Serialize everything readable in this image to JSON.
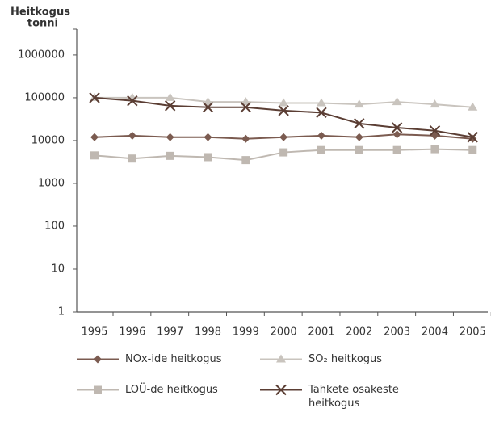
{
  "chart_data": {
    "type": "line",
    "ylabel": [
      "Heitkogus",
      "tonni"
    ],
    "x": [
      1995,
      1996,
      1997,
      1998,
      1999,
      2000,
      2001,
      2002,
      2003,
      2004,
      2005
    ],
    "xlim": [
      1994.53,
      2005.4
    ],
    "xticks": [
      1995,
      1996,
      1997,
      1998,
      1999,
      2000,
      2001,
      2002,
      2003,
      2004,
      2005
    ],
    "ylim": [
      1,
      4000000
    ],
    "yscale": "log",
    "yticks": [
      1,
      10,
      100,
      1000,
      10000,
      100000,
      1000000
    ],
    "series": [
      {
        "name": "NOx-ide heitkogus",
        "color": "#7b5b50",
        "marker": "diamond",
        "values": [
          12000,
          13000,
          12000,
          12000,
          11000,
          12000,
          13000,
          12000,
          14000,
          13000,
          11000
        ]
      },
      {
        "name": "SO₂ heitkogus",
        "color": "#c9c4be",
        "marker": "triangle",
        "values": [
          100000,
          100000,
          100000,
          80000,
          80000,
          75000,
          75000,
          70000,
          80000,
          70000,
          60000
        ]
      },
      {
        "name": "LOÜ-de heitkogus",
        "color": "#bfb8b1",
        "marker": "square",
        "values": [
          4500,
          3800,
          4400,
          4100,
          3500,
          5300,
          6000,
          6000,
          6000,
          6300,
          6000
        ]
      },
      {
        "name": "Tahkete osakeste heitkogus",
        "color": "#5b3e34",
        "marker": "x",
        "values": [
          100000,
          85000,
          65000,
          60000,
          60000,
          50000,
          45000,
          25000,
          20000,
          17000,
          12000
        ]
      }
    ]
  }
}
